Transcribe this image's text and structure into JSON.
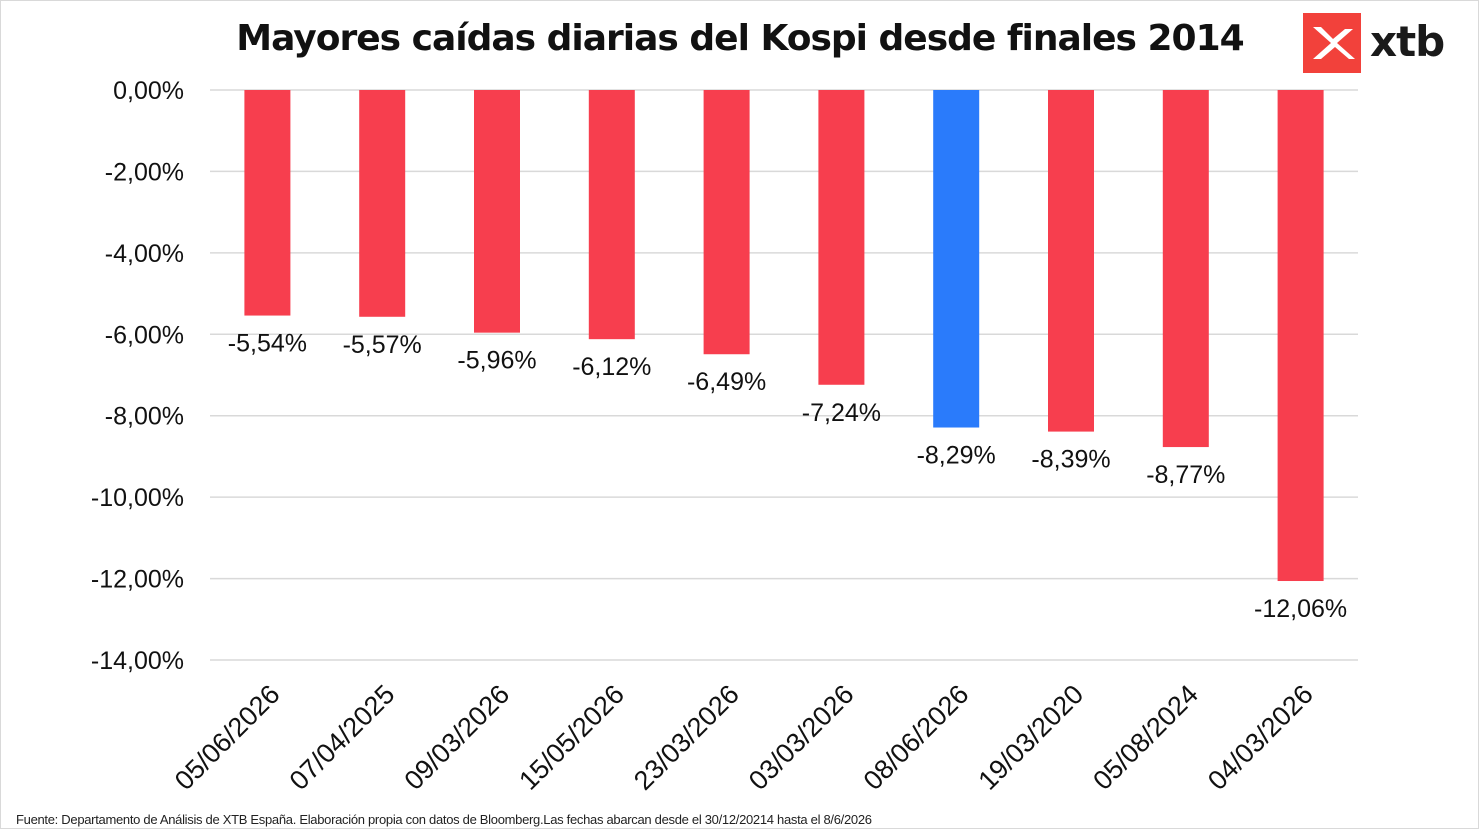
{
  "chart_data": {
    "type": "bar",
    "title": "Mayores caídas diarias del Kospi desde finales 2014",
    "categories": [
      "05/06/2026",
      "07/04/2025",
      "09/03/2026",
      "15/05/2026",
      "23/03/2026",
      "03/03/2026",
      "08/06/2026",
      "19/03/2020",
      "05/08/2024",
      "04/03/2026"
    ],
    "values": [
      -5.54,
      -5.57,
      -5.96,
      -6.12,
      -6.49,
      -7.24,
      -8.29,
      -8.39,
      -8.77,
      -12.06
    ],
    "data_labels": [
      "-5,54%",
      "-5,57%",
      "-5,96%",
      "-6,12%",
      "-6,49%",
      "-7,24%",
      "-8,29%",
      "-8,39%",
      "-8,77%",
      "-12,06%"
    ],
    "y_ticks": [
      0,
      -2,
      -4,
      -6,
      -8,
      -10,
      -12,
      -14
    ],
    "y_tick_labels": [
      "0,00%",
      "-2,00%",
      "-4,00%",
      "-6,00%",
      "-8,00%",
      "-10,00%",
      "-12,00%",
      "-14,00%"
    ],
    "ylim": [
      -14,
      0
    ],
    "grid": true,
    "bar_color": "#f73e4e",
    "highlight_color": "#2a7bfb",
    "highlight_index": 6,
    "xlabel": "",
    "ylabel": ""
  },
  "logo": {
    "text": "xtb",
    "color": "#f2413b"
  },
  "source": "Fuente: Departamento de Análisis de XTB España. Elaboración propia con datos de Bloomberg.Las fechas abarcan desde el 30/12/20214 hasta el 8/6/2026"
}
